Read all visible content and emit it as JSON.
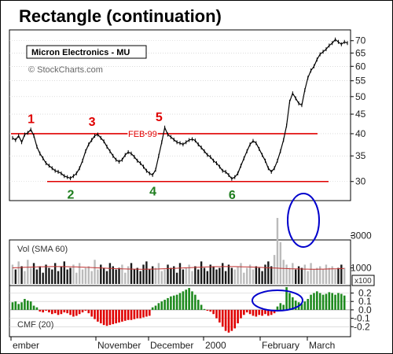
{
  "header": {
    "title": "Rectangle (continuation)",
    "symbol_box": "Micron Electronics - MU",
    "copyright": "© StockCharts.com"
  },
  "chart_data": [
    {
      "type": "line",
      "panel": "price",
      "yscale": "log",
      "ylim": [
        27,
        74
      ],
      "y_ticks": [
        "70",
        "65",
        "60",
        "55",
        "50",
        "45",
        "40",
        "35",
        "30"
      ],
      "y_tick_values": [
        70,
        65,
        60,
        55,
        50,
        45,
        40,
        35,
        30
      ],
      "resistance": {
        "value": 40,
        "label": "FEB 99"
      },
      "support": {
        "value": 30
      },
      "points_red": [
        {
          "label": "1",
          "x": 6
        },
        {
          "label": "3",
          "x": 26
        },
        {
          "label": "5",
          "x": 48
        }
      ],
      "points_green": [
        {
          "label": "2",
          "x": 19
        },
        {
          "label": "4",
          "x": 46
        },
        {
          "label": "6",
          "x": 72
        }
      ],
      "close": [
        39,
        38.5,
        39.5,
        38,
        39.8,
        40.2,
        41,
        39.5,
        37,
        35.5,
        34.5,
        33.5,
        33,
        32.5,
        32,
        31.8,
        31.5,
        31,
        30.8,
        30.6,
        31,
        31.5,
        32.5,
        34,
        36,
        37.5,
        38.5,
        39.5,
        39.8,
        39,
        38.2,
        37,
        36,
        35,
        34.2,
        33.8,
        34.2,
        35.2,
        35.8,
        35.5,
        34.8,
        34,
        33.5,
        32.8,
        32,
        31.5,
        31.2,
        32.2,
        35,
        38,
        41.5,
        39.8,
        39.2,
        38.6,
        38,
        37.8,
        37.5,
        38,
        38.5,
        38.7,
        38.4,
        37.5,
        36.8,
        36,
        35.2,
        34.8,
        34,
        33.5,
        32.8,
        32,
        31.8,
        31.2,
        30.5,
        30.8,
        31.5,
        33,
        34.5,
        36,
        37.5,
        38.3,
        37.8,
        36.5,
        35.2,
        34,
        32.5,
        31.8,
        32.5,
        34,
        36,
        38.5,
        42,
        48.5,
        51,
        49.5,
        48,
        47.5,
        52,
        56,
        58.5,
        60,
        62.5,
        64.5,
        65.5,
        66.5,
        68,
        69,
        70.5,
        69.5,
        68.5,
        69.5,
        69
      ]
    },
    {
      "type": "bar",
      "panel": "volume",
      "title": "Vol (SMA 60)",
      "y_ticks": [
        "3000",
        "1000"
      ],
      "y_tick_values": [
        3000,
        1000
      ],
      "ylim": [
        0,
        4200
      ],
      "sma": 1000,
      "multiplier_label": "x100",
      "values": [
        1200,
        900,
        1400,
        1100,
        800,
        1500,
        1000,
        1300,
        900,
        1100,
        700,
        1200,
        1000,
        900,
        1300,
        800,
        1100,
        1400,
        900,
        1000,
        1200,
        700,
        1300,
        900,
        1000,
        1100,
        800,
        1500,
        900,
        1200,
        1000,
        800,
        1300,
        1100,
        900,
        1000,
        1200,
        700,
        1100,
        1300,
        900,
        1000,
        800,
        1200,
        1400,
        900,
        1100,
        1000,
        1300,
        800,
        900,
        1200,
        1000,
        1100,
        700,
        1300,
        900,
        1000,
        1200,
        800,
        1100,
        900,
        1400,
        1000,
        800,
        1200,
        1100,
        900,
        1000,
        1300,
        800,
        1200,
        1000,
        900,
        1100,
        1300,
        700,
        1000,
        1200,
        900,
        1100,
        1000,
        800,
        1200,
        1400,
        1100,
        1800,
        4100,
        2600,
        1500,
        1200,
        1000,
        1300,
        900,
        1100,
        1000,
        1200,
        800,
        1300,
        900,
        1000,
        1100,
        900,
        1200,
        1000,
        1100,
        900,
        1000,
        1200,
        1000
      ]
    },
    {
      "type": "bar",
      "panel": "cmf",
      "title": "CMF (20)",
      "y_ticks": [
        "0.2",
        "0.1",
        "0.0",
        "-0.1",
        "-0.2"
      ],
      "y_tick_values": [
        0.2,
        0.1,
        0.0,
        -0.1,
        -0.2
      ],
      "ylim": [
        -0.3,
        0.27
      ],
      "values": [
        0.09,
        0.1,
        0.07,
        0.09,
        0.13,
        0.11,
        0.1,
        0.05,
        0.03,
        -0.02,
        -0.03,
        -0.01,
        -0.03,
        -0.05,
        -0.04,
        -0.06,
        -0.05,
        -0.03,
        -0.04,
        -0.06,
        -0.08,
        -0.07,
        -0.05,
        -0.03,
        -0.01,
        -0.04,
        -0.08,
        -0.11,
        -0.14,
        -0.16,
        -0.18,
        -0.19,
        -0.18,
        -0.17,
        -0.16,
        -0.15,
        -0.14,
        -0.13,
        -0.12,
        -0.12,
        -0.11,
        -0.1,
        -0.1,
        -0.09,
        -0.08,
        -0.07,
        0.03,
        0.05,
        0.08,
        0.1,
        0.12,
        0.14,
        0.16,
        0.17,
        0.18,
        0.2,
        0.22,
        0.24,
        0.26,
        0.22,
        0.18,
        0.12,
        0.06,
        0.01,
        -0.01,
        -0.02,
        -0.05,
        -0.1,
        -0.15,
        -0.2,
        -0.25,
        -0.27,
        -0.25,
        -0.22,
        -0.16,
        -0.1,
        -0.06,
        -0.03,
        -0.05,
        -0.07,
        -0.08,
        -0.06,
        -0.07,
        -0.05,
        -0.07,
        -0.06,
        -0.04,
        0.04,
        0.08,
        0.06,
        0.27,
        0.2,
        0.15,
        0.11,
        0.09,
        0.07,
        0.1,
        0.13,
        0.18,
        0.2,
        0.22,
        0.2,
        0.18,
        0.19,
        0.21,
        0.2,
        0.18,
        0.2,
        0.19,
        0.17
      ]
    }
  ],
  "x_axis": {
    "months": [
      "ember",
      "November",
      "December",
      "2000",
      "February",
      "March"
    ]
  },
  "colors": {
    "red_line": "#e00000",
    "price_line": "#000000",
    "volume_bar": "#1a1a1a",
    "volume_light": "#bbbbbb",
    "volume_red": "#cc0000",
    "sma_line": "#c03030",
    "cmf_pos": "#1e8a1e",
    "cmf_neg": "#e00000",
    "circle": "#0000cc",
    "grid": "#c8c8c8",
    "border": "#000000"
  }
}
